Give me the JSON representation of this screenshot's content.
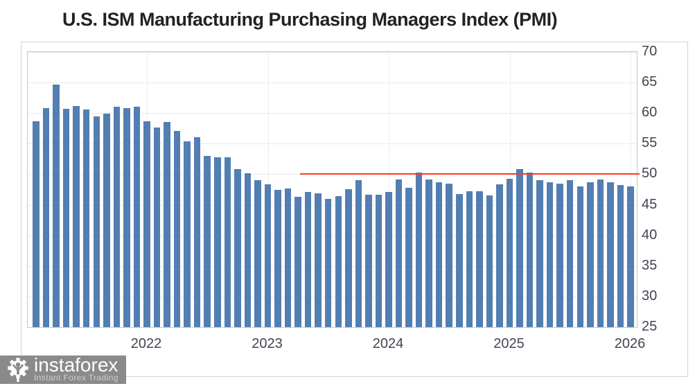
{
  "chart_data": {
    "type": "bar",
    "title": "U.S. ISM Manufacturing Purchasing Managers Index (PMI)",
    "x": [
      "2021-01",
      "2021-02",
      "2021-03",
      "2021-04",
      "2021-05",
      "2021-06",
      "2021-07",
      "2021-08",
      "2021-09",
      "2021-10",
      "2021-11",
      "2021-12",
      "2022-01",
      "2022-02",
      "2022-03",
      "2022-04",
      "2022-05",
      "2022-06",
      "2022-07",
      "2022-08",
      "2022-09",
      "2022-10",
      "2022-11",
      "2022-12",
      "2023-01",
      "2023-02",
      "2023-03",
      "2023-04",
      "2023-05",
      "2023-06",
      "2023-07",
      "2023-08",
      "2023-09",
      "2023-10",
      "2023-11",
      "2023-12",
      "2024-01",
      "2024-02",
      "2024-03",
      "2024-04",
      "2024-05",
      "2024-06",
      "2024-07",
      "2024-08",
      "2024-09",
      "2024-10",
      "2024-11",
      "2024-12",
      "2025-01",
      "2025-02",
      "2025-03",
      "2025-04",
      "2025-05",
      "2025-06",
      "2025-07",
      "2025-08",
      "2025-09",
      "2025-10",
      "2025-11",
      "2025-12"
    ],
    "values": [
      58.7,
      60.8,
      64.7,
      60.7,
      61.2,
      60.6,
      59.5,
      59.9,
      61.1,
      60.8,
      61.1,
      58.7,
      57.6,
      58.6,
      57.1,
      55.4,
      56.1,
      53.0,
      52.8,
      52.8,
      50.9,
      50.2,
      49.0,
      48.4,
      47.4,
      47.7,
      46.3,
      47.1,
      46.9,
      46.0,
      46.4,
      47.6,
      49.0,
      46.7,
      46.7,
      47.1,
      49.1,
      47.8,
      50.3,
      49.2,
      48.7,
      48.5,
      46.8,
      47.2,
      47.2,
      46.5,
      48.4,
      49.3,
      50.9,
      50.3,
      49.0,
      48.7,
      48.5,
      49.0,
      48.0,
      48.7,
      49.1,
      48.7,
      48.2,
      48.0
    ],
    "xlabel": "",
    "ylabel": "",
    "ylim": [
      25,
      70
    ],
    "yticks": [
      25,
      30,
      35,
      40,
      45,
      50,
      55,
      60,
      65,
      70
    ],
    "xtick_labels": [
      "2022",
      "2023",
      "2024",
      "2025",
      "2026"
    ],
    "grid": true,
    "legend": false,
    "y_axis_side": "right",
    "bar_color": "#527eb2",
    "reference_line": {
      "y": 50,
      "color": "#f83b22",
      "x_start": "2023-04",
      "x_end": "2025-12"
    }
  },
  "branding": {
    "logo_text": "instaforex",
    "tagline": "Instant Forex Trading",
    "logo_bg": "#8a8a8a",
    "logo_icon": "gear-person-icon"
  }
}
